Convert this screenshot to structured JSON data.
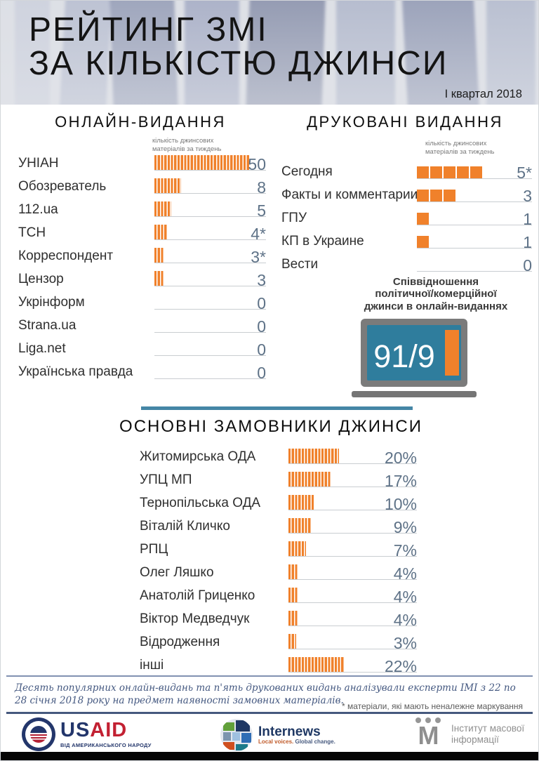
{
  "header": {
    "title_line1": "РЕЙТИНГ ЗМІ",
    "title_line2": "ЗА КІЛЬКІСТЮ ДЖИНСИ",
    "period": "І квартал 2018"
  },
  "online": {
    "title": "ОНЛАЙН-ВИДАННЯ",
    "axis_caption_line1": "кількість джинсових",
    "axis_caption_line2": "матеріалів за тиждень",
    "items": [
      {
        "label": "УНІАН",
        "value": "50",
        "units": 50
      },
      {
        "label": "Обозреватель",
        "value": "8",
        "units": 8
      },
      {
        "label": "112.ua",
        "value": "5",
        "units": 5
      },
      {
        "label": "ТСН",
        "value": "4*",
        "units": 4
      },
      {
        "label": "Корреспондент",
        "value": "3*",
        "units": 3
      },
      {
        "label": "Цензор",
        "value": "3",
        "units": 3
      },
      {
        "label": "Укрінформ",
        "value": "0",
        "units": 0
      },
      {
        "label": "Strana.ua",
        "value": "0",
        "units": 0
      },
      {
        "label": "Liga.net",
        "value": "0",
        "units": 0
      },
      {
        "label": "Українська правда",
        "value": "0",
        "units": 0
      }
    ]
  },
  "print": {
    "title": "ДРУКОВАНІ ВИДАННЯ",
    "axis_caption_line1": "кількість джинсових",
    "axis_caption_line2": "матеріалів за тиждень",
    "items": [
      {
        "label": "Сегодня",
        "value": "5*",
        "units": 5
      },
      {
        "label": "Факты и комментарии",
        "value": "3",
        "units": 3
      },
      {
        "label": "ГПУ",
        "value": "1",
        "units": 1
      },
      {
        "label": "КП в Украине",
        "value": "1",
        "units": 1
      },
      {
        "label": "Вести",
        "value": "0",
        "units": 0
      }
    ]
  },
  "ratio": {
    "caption_line1": "Співвідношення",
    "caption_line2": "політичної/комерційної",
    "caption_line3": "джинси в онлайн-виданнях",
    "value": "91/9"
  },
  "clients": {
    "title": "ОСНОВНІ ЗАМОВНИКИ ДЖИНСИ",
    "items": [
      {
        "label": "Житомирська ОДА",
        "value": "20%",
        "percent": 20
      },
      {
        "label": "УПЦ МП",
        "value": "17%",
        "percent": 17
      },
      {
        "label": "Тернопільська ОДА",
        "value": "10%",
        "percent": 10
      },
      {
        "label": "Віталій Кличко",
        "value": "9%",
        "percent": 9
      },
      {
        "label": "РПЦ",
        "value": "7%",
        "percent": 7
      },
      {
        "label": "Олег Ляшко",
        "value": "4%",
        "percent": 4
      },
      {
        "label": "Анатолій Гриценко",
        "value": "4%",
        "percent": 4
      },
      {
        "label": "Віктор Медведчук",
        "value": "4%",
        "percent": 4
      },
      {
        "label": "Відродження",
        "value": "3%",
        "percent": 3
      },
      {
        "label": "інші",
        "value": "22%",
        "percent": 22
      }
    ]
  },
  "footer": {
    "note": "Десять популярних онлайн-видань та п'ять друкованих видань аналізували експерти ІМІ з 22 по 28 січня 2018 року на предмет наявності замовних матеріалів.",
    "asterisk_note": "* матеріали, які мають неналежне маркування",
    "logos": {
      "usaid": {
        "word_us": "US",
        "word_aid": "AID",
        "subtext": "ВІД АМЕРИКАНСЬКОГО НАРОДУ"
      },
      "internews": {
        "word": "Internews",
        "tagline_1": "Local voices.",
        "tagline_2": " Global change."
      },
      "imi": {
        "monogram": "М",
        "line1": "Інститут масової",
        "line2": "інформації"
      }
    }
  },
  "colors": {
    "accent_orange": "#F0812B",
    "teal_screen": "#2F7D9D",
    "teal_divider": "#4586A6",
    "number_gray_blue": "#5E7287",
    "footer_line_blue": "#46597E"
  },
  "chart_data": [
    {
      "type": "bar",
      "title": "ОНЛАЙН-ВИДАННЯ",
      "ylabel": "кількість джинсових матеріалів за тиждень",
      "categories": [
        "УНІАН",
        "Обозреватель",
        "112.ua",
        "ТСН",
        "Корреспондент",
        "Цензор",
        "Укрінформ",
        "Strana.ua",
        "Liga.net",
        "Українська правда"
      ],
      "values": [
        50,
        8,
        5,
        4,
        3,
        3,
        0,
        0,
        0,
        0
      ],
      "value_labels": [
        "50",
        "8",
        "5",
        "4*",
        "3*",
        "3",
        "0",
        "0",
        "0",
        "0"
      ],
      "orientation": "horizontal"
    },
    {
      "type": "bar",
      "title": "ДРУКОВАНІ ВИДАННЯ",
      "ylabel": "кількість джинсових матеріалів за тиждень",
      "categories": [
        "Сегодня",
        "Факты и комментарии",
        "ГПУ",
        "КП в Украине",
        "Вести"
      ],
      "values": [
        5,
        3,
        1,
        1,
        0
      ],
      "value_labels": [
        "5*",
        "3",
        "1",
        "1",
        "0"
      ],
      "orientation": "horizontal"
    },
    {
      "type": "other",
      "title": "Співвідношення політичної/комерційної джинси в онлайн-виданнях",
      "value": "91/9"
    },
    {
      "type": "bar",
      "title": "ОСНОВНІ ЗАМОВНИКИ ДЖИНСИ",
      "categories": [
        "Житомирська ОДА",
        "УПЦ МП",
        "Тернопільська ОДА",
        "Віталій Кличко",
        "РПЦ",
        "Олег Ляшко",
        "Анатолій Гриценко",
        "Віктор Медведчук",
        "Відродження",
        "інші"
      ],
      "values": [
        20,
        17,
        10,
        9,
        7,
        4,
        4,
        4,
        3,
        22
      ],
      "unit": "%",
      "orientation": "horizontal"
    }
  ]
}
